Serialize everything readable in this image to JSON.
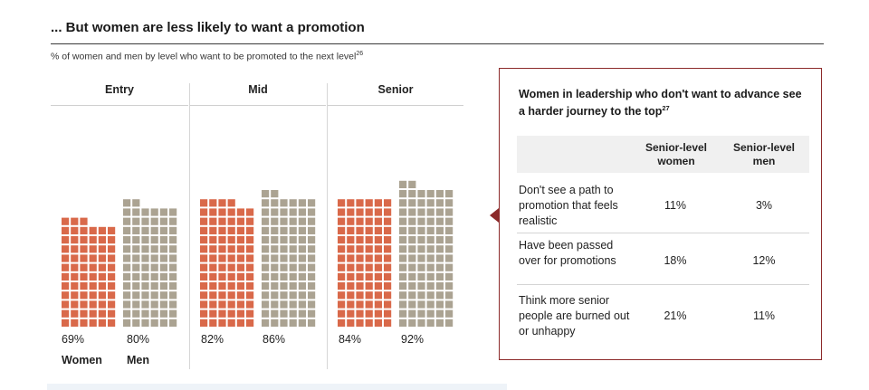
{
  "title": "... But women are less likely to want a promotion",
  "subtitle": "% of women and men by level who want to be promoted to the next level",
  "subtitle_ref": "26",
  "chart_data": {
    "type": "waffle",
    "title": "... But women are less likely to want a promotion",
    "subtitle": "% of women and men by level who want to be promoted to the next level",
    "categories": [
      "Entry",
      "Mid",
      "Senior"
    ],
    "series": [
      {
        "name": "Women",
        "color": "#d9694a",
        "values": [
          69,
          82,
          84
        ],
        "labels": [
          "69%",
          "82%",
          "84%"
        ]
      },
      {
        "name": "Men",
        "color": "#aba392",
        "values": [
          80,
          86,
          92
        ],
        "labels": [
          "80%",
          "86%",
          "92%"
        ]
      }
    ],
    "unit": "%",
    "legend": "bottom"
  },
  "panel": {
    "title": "Women in leadership who don't want to advance see a harder journey to the top",
    "title_ref": "27",
    "col_women": "Senior-level women",
    "col_men": "Senior-level men",
    "rows": [
      {
        "label": "Don't see a path to promotion that feels realistic",
        "women": "11%",
        "men": "3%"
      },
      {
        "label": "Have been passed over for promotions",
        "women": "18%",
        "men": "12%"
      },
      {
        "label": "Think more senior people are burned out or unhappy",
        "women": "21%",
        "men": "11%"
      }
    ]
  }
}
